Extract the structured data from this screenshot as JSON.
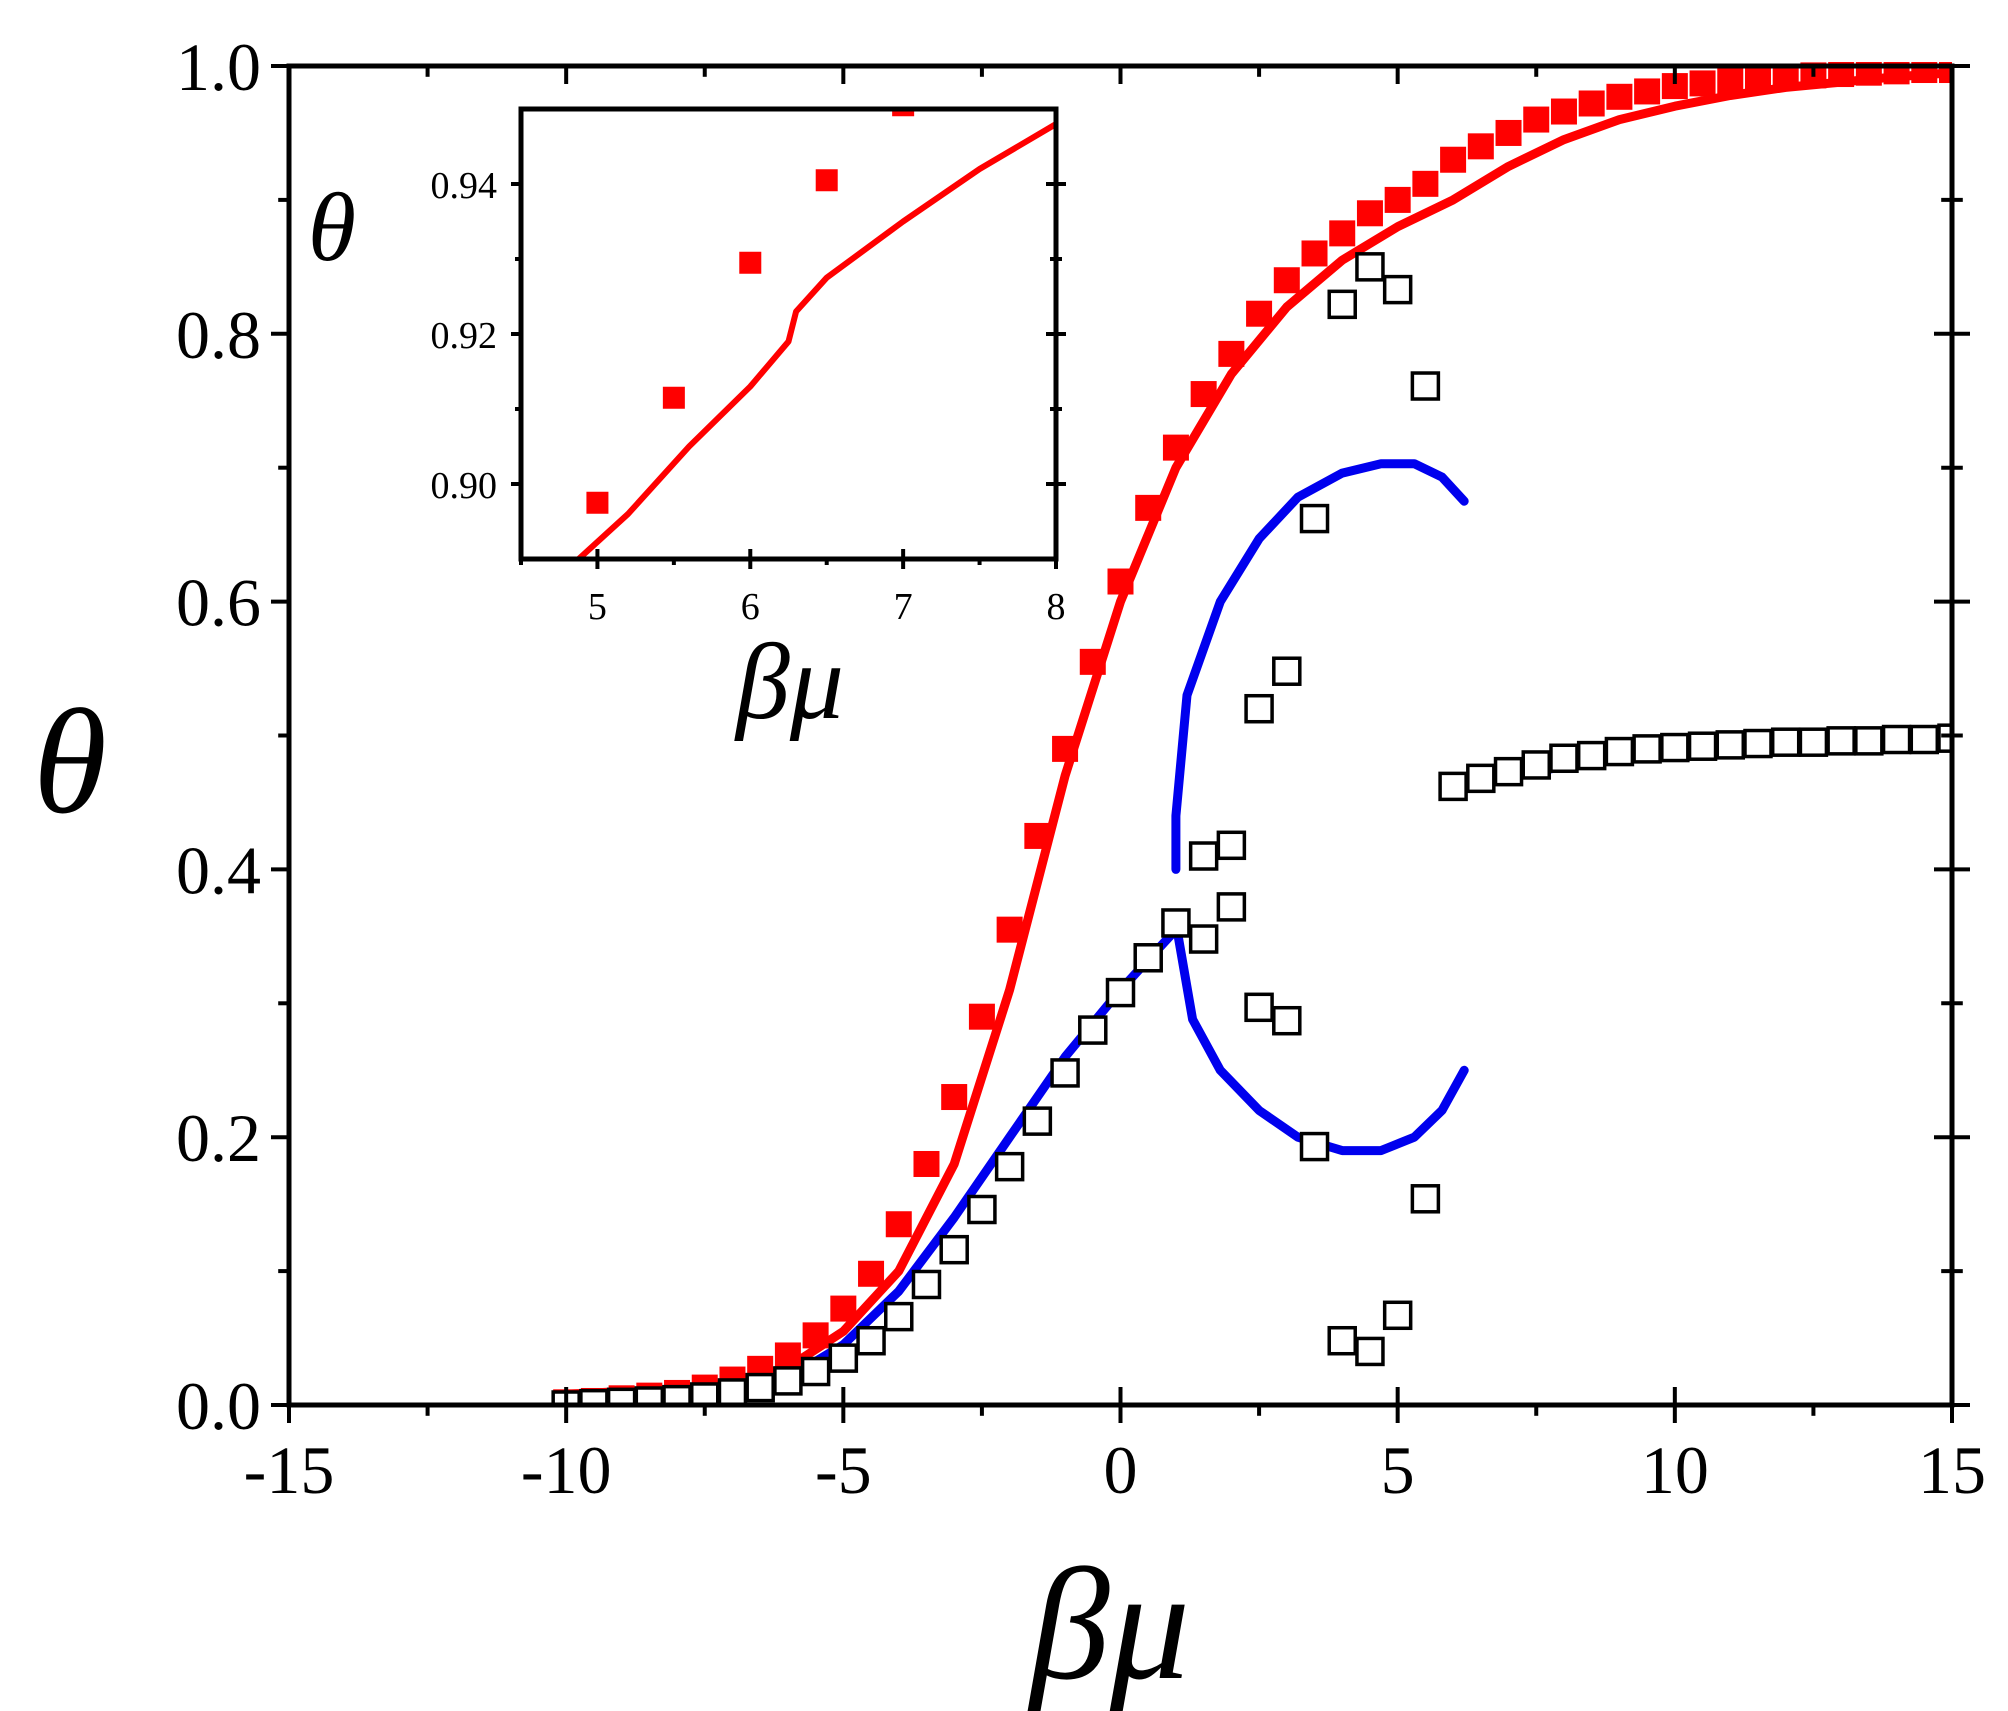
{
  "chart_data": [
    {
      "type": "scatter",
      "title": "",
      "xlabel": "βμ",
      "ylabel": "θ",
      "xlim": [
        -15,
        15
      ],
      "ylim": [
        0,
        1
      ],
      "xticks": [
        "-15",
        "-10",
        "-5",
        "0",
        "5",
        "10",
        "15"
      ],
      "yticks": [
        "0.0",
        "0.2",
        "0.4",
        "0.6",
        "0.8",
        "1.0"
      ],
      "grid": false,
      "legend": "none",
      "colors": {
        "red": "#ff0000",
        "blue": "#0000ee",
        "black": "#000000"
      },
      "series": [
        {
          "style": "filled red squares",
          "x": [
            -10,
            -9.5,
            -9,
            -8.5,
            -8,
            -7.5,
            -7,
            -6.5,
            -6,
            -5.5,
            -5,
            -4.5,
            -4,
            -3.5,
            -3,
            -2.5,
            -2,
            -1.5,
            -1,
            -0.5,
            0,
            0.5,
            1,
            1.5,
            2,
            2.5,
            3,
            3.5,
            4,
            4.5,
            5,
            5.5,
            6,
            6.5,
            7,
            7.5,
            8,
            8.5,
            9,
            9.5,
            10,
            10.5,
            11,
            11.5,
            12,
            12.5,
            13,
            13.5,
            14,
            14.5,
            15
          ],
          "y": [
            0.002,
            0.003,
            0.005,
            0.007,
            0.009,
            0.013,
            0.019,
            0.027,
            0.037,
            0.052,
            0.072,
            0.098,
            0.135,
            0.18,
            0.23,
            0.29,
            0.355,
            0.425,
            0.49,
            0.555,
            0.615,
            0.67,
            0.715,
            0.755,
            0.785,
            0.815,
            0.84,
            0.86,
            0.875,
            0.89,
            0.9,
            0.912,
            0.93,
            0.94,
            0.95,
            0.96,
            0.966,
            0.972,
            0.977,
            0.981,
            0.985,
            0.987,
            0.989,
            0.991,
            0.992,
            0.993,
            0.994,
            0.995,
            0.996,
            0.997,
            0.997
          ]
        },
        {
          "style": "open black squares",
          "x": [
            -10,
            -9.5,
            -9,
            -8.5,
            -8,
            -7.5,
            -7,
            -6.5,
            -6,
            -5.5,
            -5,
            -4.5,
            -4,
            -3.5,
            -3,
            -2.5,
            -2,
            -1.5,
            -1,
            -0.5,
            0,
            0.5,
            1,
            1.5,
            1.5,
            2,
            2,
            2.5,
            2.5,
            3,
            3,
            3.5,
            3.5,
            4,
            4,
            4.5,
            4.5,
            5,
            5,
            5.5,
            5.5,
            6,
            6.5,
            7,
            7.5,
            8,
            8.5,
            9,
            9.5,
            10,
            10.5,
            11,
            11.5,
            12,
            12.5,
            13,
            13.5,
            14,
            14.5,
            15
          ],
          "y": [
            0.0,
            0.001,
            0.002,
            0.003,
            0.004,
            0.006,
            0.009,
            0.013,
            0.018,
            0.025,
            0.035,
            0.048,
            0.066,
            0.09,
            0.116,
            0.146,
            0.178,
            0.212,
            0.248,
            0.28,
            0.308,
            0.334,
            0.36,
            0.348,
            0.41,
            0.372,
            0.418,
            0.297,
            0.52,
            0.287,
            0.548,
            0.193,
            0.662,
            0.048,
            0.822,
            0.04,
            0.85,
            0.067,
            0.833,
            0.154,
            0.761,
            0.462,
            0.468,
            0.473,
            0.478,
            0.483,
            0.485,
            0.488,
            0.49,
            0.491,
            0.492,
            0.493,
            0.494,
            0.495,
            0.495,
            0.496,
            0.496,
            0.497,
            0.497,
            0.498
          ]
        },
        {
          "style": "red line",
          "x": [
            -10,
            -8,
            -7,
            -6,
            -5,
            -4,
            -3,
            -2,
            -1,
            0,
            1,
            2,
            3,
            4,
            5,
            6,
            7,
            8,
            9,
            10,
            11,
            12,
            13,
            14,
            15
          ],
          "y": [
            0.008,
            0.012,
            0.016,
            0.028,
            0.055,
            0.1,
            0.18,
            0.31,
            0.47,
            0.6,
            0.7,
            0.77,
            0.82,
            0.855,
            0.88,
            0.9,
            0.925,
            0.945,
            0.96,
            0.97,
            0.978,
            0.984,
            0.988,
            0.992,
            0.995
          ]
        },
        {
          "style": "blue line",
          "x": [
            -8,
            -6,
            -5,
            -4,
            -3,
            -2,
            -1,
            0,
            1.0
          ],
          "y": [
            0.0,
            0.02,
            0.045,
            0.085,
            0.14,
            0.2,
            0.26,
            0.31,
            0.355
          ]
        },
        {
          "style": "blue line",
          "x": [
            1.0,
            1.0,
            1.2,
            1.8,
            2.5,
            3.2,
            4.0,
            4.7,
            5.3,
            5.8,
            6.2
          ],
          "y": [
            0.4,
            0.44,
            0.53,
            0.6,
            0.647,
            0.678,
            0.696,
            0.703,
            0.703,
            0.693,
            0.675
          ]
        },
        {
          "style": "blue line",
          "x": [
            1.0,
            1.3,
            1.8,
            2.5,
            3.2,
            4.0,
            4.7,
            5.3,
            5.8,
            6.2
          ],
          "y": [
            0.36,
            0.288,
            0.25,
            0.22,
            0.2,
            0.19,
            0.19,
            0.2,
            0.22,
            0.25
          ]
        },
        {
          "style": "blue line",
          "x": [
            6.2,
            7,
            8,
            9,
            10,
            11,
            12,
            13,
            14,
            15
          ],
          "y": [
            0.46,
            0.469,
            0.477,
            0.482,
            0.486,
            0.489,
            0.491,
            0.493,
            0.494,
            0.495
          ]
        }
      ]
    },
    {
      "type": "scatter",
      "title": "",
      "xlabel": "βμ",
      "ylabel": "θ",
      "xlim": [
        4.5,
        8
      ],
      "ylim": [
        0.89,
        0.95
      ],
      "xticks": [
        "5",
        "6",
        "7",
        "8"
      ],
      "yticks": [
        "0.90",
        "0.92",
        "0.94"
      ],
      "grid": false,
      "legend": "none",
      "series": [
        {
          "style": "filled red squares",
          "x": [
            5,
            5.5,
            6,
            6.5,
            7
          ],
          "y": [
            0.8975,
            0.9115,
            0.9295,
            0.9405,
            0.9505
          ]
        },
        {
          "style": "red line",
          "x": [
            4.85,
            5.2,
            5.6,
            6.0,
            6.25,
            6.3,
            6.5,
            7.0,
            7.5,
            8.0
          ],
          "y": [
            0.8895,
            0.896,
            0.905,
            0.913,
            0.919,
            0.923,
            0.9275,
            0.935,
            0.942,
            0.948
          ]
        }
      ]
    }
  ]
}
